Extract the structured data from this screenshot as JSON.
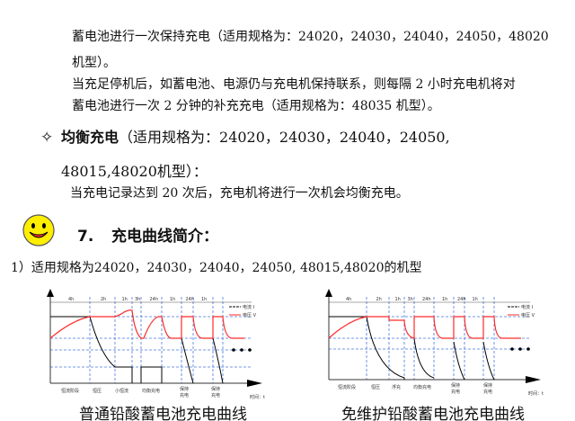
{
  "paragraphs": {
    "line1": "蓄电池进行一次保持充电（适用规格为：24020，24030，24040，24050，48020",
    "line2": "机型）。",
    "line3": "当充足停机后，如蓄电池、电源仍与充电机保持联系，则每隔 2 小时充电机将对",
    "line4": "蓄电池进行一次 2 分钟的补充充电（适用规格为：48035 机型）。"
  },
  "equalize": {
    "bullet_icon": "diamond-star-icon",
    "title": "均衡充电",
    "title_rest": "（适用规格为：24020，24030，24040，24050,",
    "title_line2": "48015,48020机型）：",
    "body": "当充电记录达到 20 次后，充电机将进行一次机会均衡充电。"
  },
  "section7": {
    "icon": "smiley-face-icon",
    "number": "7.",
    "title": "充电曲线简介："
  },
  "subsection": "1）适用规格为24020，24030，24040，24050, 48015,48020的机型",
  "colors": {
    "voltage": "#ff2a2a",
    "current": "#000000",
    "grid": "#4a78e0"
  },
  "diagram1": {
    "caption": "普通铅酸蓄电池充电曲线",
    "durations": [
      "4h",
      "2h",
      "1h",
      "3h",
      "24h",
      "1h",
      "24h",
      "1h"
    ],
    "legend": {
      "current": "电流 I",
      "voltage": "电压 V"
    },
    "stages": [
      "恒流阶段",
      "恒压",
      "小恒流",
      "均衡充电",
      "保持",
      "充电",
      "保持",
      "充电"
    ],
    "xlabel": "时间：t"
  },
  "diagram2": {
    "caption": "免维护铅酸蓄电池充电曲线",
    "durations": [
      "4h",
      "2h",
      "1h",
      "3h",
      "24h",
      "1h",
      "24h",
      "1h"
    ],
    "legend": {
      "current": "电流 I",
      "voltage": "电压 V"
    },
    "stages": [
      "恒流阶段",
      "恒压",
      "浮充",
      "均衡充电",
      "保持",
      "充电",
      "保持",
      "充电"
    ],
    "xlabel": "时间：t"
  }
}
